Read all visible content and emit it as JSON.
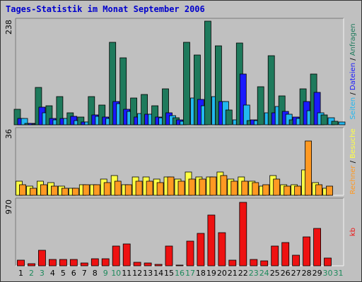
{
  "title": "Tages-Statistik im Monat September 2006",
  "colors": {
    "background": "#c0c0c0",
    "title": "#0000cc",
    "anfragen": "#1e7a5c",
    "dateien": "#1a1aff",
    "seiten": "#22b8f0",
    "besuche": "#ffff44",
    "rechner": "#ff9922",
    "kb": "#ee1111",
    "weekend_label": "#1e8a5c",
    "weekday_label": "#000000"
  },
  "days": [
    "1",
    "2",
    "3",
    "4",
    "5",
    "6",
    "7",
    "8",
    "9",
    "10",
    "11",
    "12",
    "13",
    "14",
    "15",
    "16",
    "17",
    "18",
    "19",
    "20",
    "21",
    "22",
    "23",
    "24",
    "25",
    "26",
    "27",
    "28",
    "29",
    "30",
    "31"
  ],
  "weekend_days": [
    "2",
    "3",
    "9",
    "10",
    "16",
    "17",
    "23",
    "24",
    "30",
    "31"
  ],
  "chart_data": [
    {
      "type": "bar",
      "panel": "top",
      "ymax_label": "238",
      "ylim": [
        0,
        238
      ],
      "series": [
        {
          "name": "Anfragen",
          "color": "#1e7a5c",
          "values": [
            36,
            3,
            86,
            44,
            65,
            27,
            18,
            64,
            46,
            190,
            153,
            62,
            69,
            44,
            82,
            16,
            190,
            161,
            238,
            182,
            34,
            188,
            10,
            87,
            158,
            67,
            12,
            83,
            116,
            22,
            8
          ]
        },
        {
          "name": "Dateien",
          "color": "#1a1aff",
          "values": [
            14,
            3,
            41,
            15,
            15,
            20,
            7,
            22,
            18,
            54,
            35,
            17,
            25,
            18,
            28,
            12,
            0,
            58,
            0,
            53,
            0,
            117,
            12,
            0,
            27,
            30,
            18,
            54,
            75,
            0,
            0
          ]
        },
        {
          "name": "Seiten",
          "color": "#22b8f0",
          "values": [
            14,
            2,
            27,
            11,
            15,
            9,
            7,
            20,
            15,
            48,
            31,
            26,
            24,
            16,
            21,
            8,
            61,
            43,
            65,
            53,
            11,
            46,
            9,
            27,
            42,
            25,
            14,
            33,
            28,
            16,
            6
          ]
        }
      ],
      "axis_label_segments": [
        {
          "text": "Seiten",
          "color": "#22b8f0"
        },
        {
          "text": " / ",
          "color": "#000000"
        },
        {
          "text": "Dateien",
          "color": "#1a1aff"
        },
        {
          "text": " / ",
          "color": "#000000"
        },
        {
          "text": "Anfragen",
          "color": "#1e7a5c"
        }
      ]
    },
    {
      "type": "bar",
      "panel": "middle",
      "ymax_label": "36",
      "ylim": [
        0,
        36
      ],
      "series": [
        {
          "name": "Besuche",
          "color": "#ffff44",
          "values": [
            8,
            5,
            8,
            7,
            5,
            4,
            6,
            6,
            9,
            11,
            6,
            10,
            10,
            9,
            10,
            9,
            13,
            10,
            10,
            13,
            9,
            10,
            8,
            5,
            11,
            6,
            6,
            14,
            7,
            4,
            0
          ]
        },
        {
          "name": "Rechner",
          "color": "#ff9922",
          "values": [
            6,
            4,
            6,
            5,
            4,
            4,
            6,
            6,
            7,
            8,
            6,
            8,
            8,
            7,
            10,
            8,
            9,
            9,
            10,
            11,
            8,
            8,
            7,
            6,
            9,
            5,
            5,
            30,
            6,
            5,
            0
          ]
        }
      ],
      "axis_label_segments": [
        {
          "text": "Rechner",
          "color": "#ff9922"
        },
        {
          "text": " / ",
          "color": "#000000"
        },
        {
          "text": "Besuche",
          "color": "#ffff44"
        }
      ]
    },
    {
      "type": "bar",
      "panel": "bottom",
      "ymax_label": "970",
      "ylim": [
        0,
        970
      ],
      "series": [
        {
          "name": "kb",
          "color": "#ee1111",
          "values": [
            80,
            30,
            230,
            90,
            95,
            100,
            40,
            110,
            110,
            290,
            330,
            50,
            40,
            25,
            290,
            15,
            370,
            480,
            760,
            500,
            85,
            950,
            100,
            70,
            300,
            350,
            160,
            430,
            560,
            120,
            0
          ]
        }
      ],
      "axis_label_segments": [
        {
          "text": "kb",
          "color": "#ee1111"
        }
      ]
    }
  ]
}
